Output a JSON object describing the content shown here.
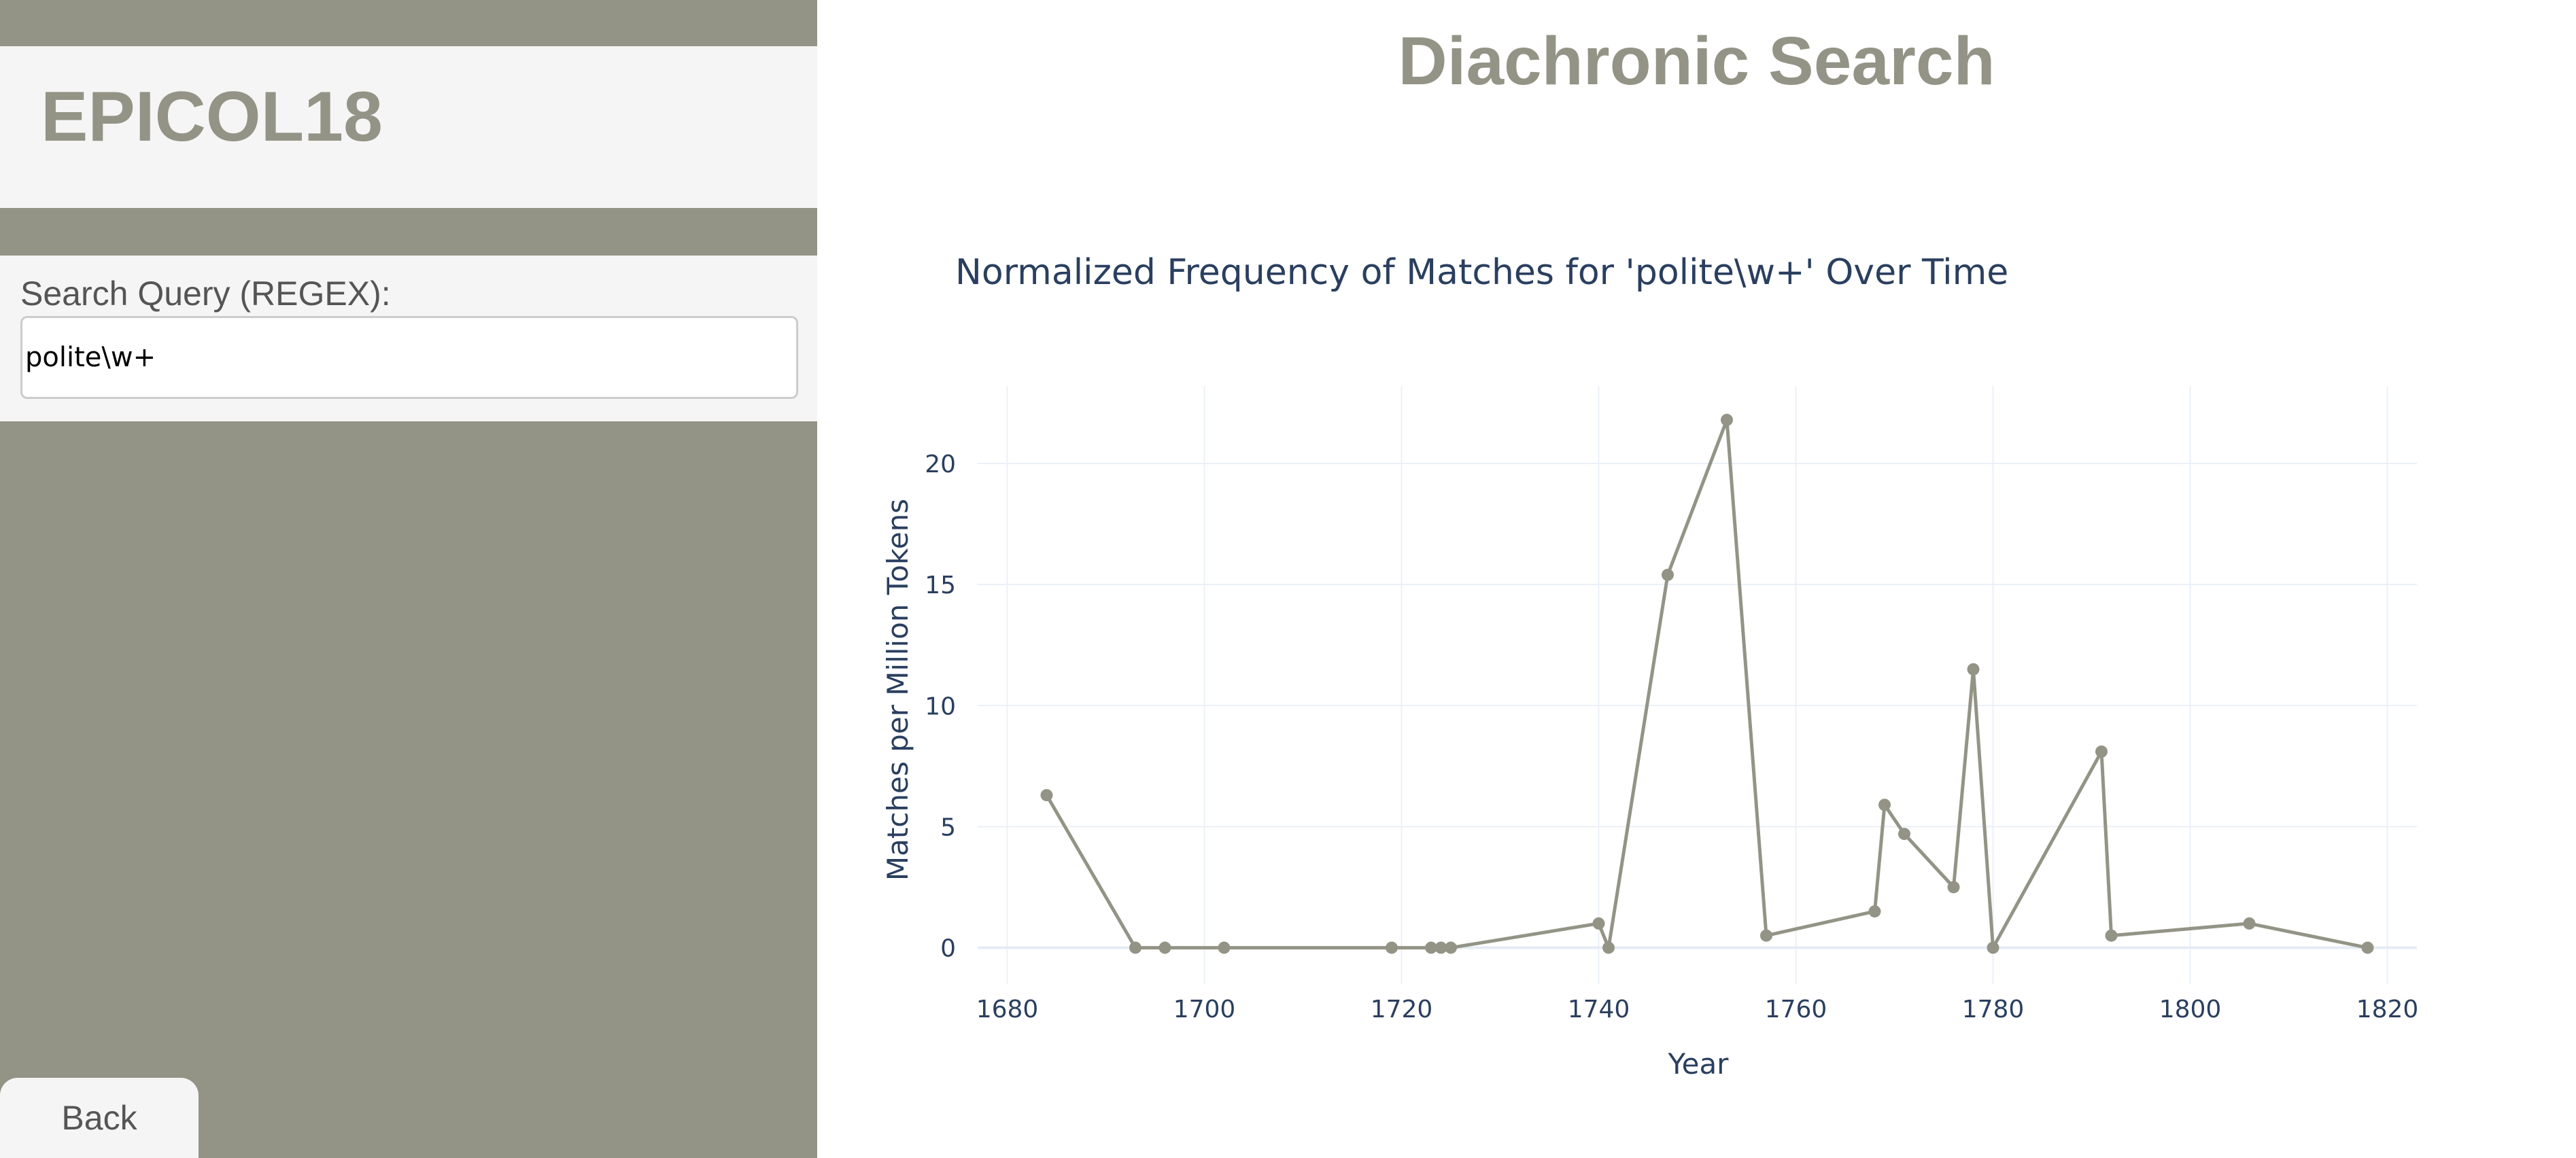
{
  "sidebar": {
    "brand": "EPICOL18",
    "search": {
      "label": "Search Query (REGEX):",
      "value": "polite\\w+"
    },
    "back_label": "Back"
  },
  "main": {
    "title": "Diachronic Search"
  },
  "colors": {
    "accent": "#939486",
    "panel": "#f5f5f5",
    "text": "#2a3f5f",
    "grid": "#ebf0f8"
  },
  "chart_data": {
    "type": "line",
    "title": "Normalized Frequency of Matches for 'polite\\w+' Over Time",
    "xlabel": "Year",
    "ylabel": "Matches per Million Tokens",
    "xlim": [
      1677,
      1823
    ],
    "ylim": [
      -1.5,
      23.2
    ],
    "xticks": [
      1680,
      1700,
      1720,
      1740,
      1760,
      1780,
      1800,
      1820
    ],
    "yticks": [
      0,
      5,
      10,
      15,
      20
    ],
    "grid": true,
    "series": [
      {
        "x": [
          1684,
          1693,
          1696,
          1702,
          1719,
          1723,
          1724,
          1725,
          1740,
          1741,
          1747,
          1753,
          1757,
          1768,
          1769,
          1771,
          1776,
          1778,
          1780,
          1791,
          1792,
          1806,
          1818
        ],
        "y": [
          6.3,
          0,
          0,
          0,
          0,
          0,
          0,
          0,
          1.0,
          0,
          15.4,
          21.8,
          0.5,
          1.5,
          5.9,
          4.7,
          2.5,
          11.5,
          0,
          8.1,
          0.5,
          1.0,
          0
        ],
        "color": "#939486"
      }
    ]
  }
}
